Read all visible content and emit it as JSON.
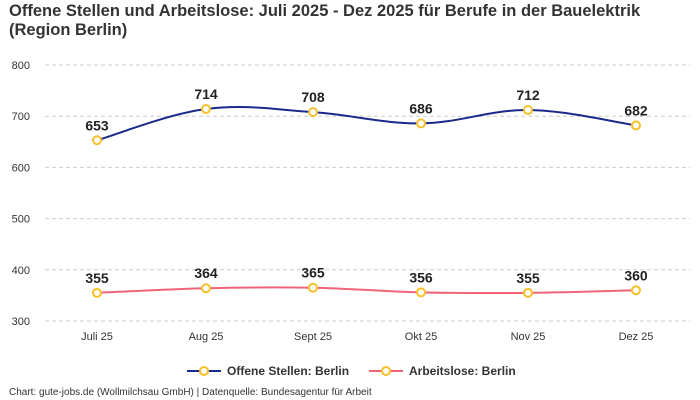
{
  "chart_data": {
    "type": "line",
    "title": "Offene Stellen und Arbeitslose: Juli 2025 - Dez 2025 für Berufe in der Bauelektrik (Region Berlin)",
    "categories": [
      "Juli 25",
      "Aug 25",
      "Sept 25",
      "Okt 25",
      "Nov 25",
      "Dez 25"
    ],
    "ylim": [
      300,
      800
    ],
    "yticks": [
      300,
      400,
      500,
      600,
      700,
      800
    ],
    "grid": true,
    "legend_position": "bottom",
    "series": [
      {
        "name": "Offene Stellen: Berlin",
        "values": [
          653,
          714,
          708,
          686,
          712,
          682
        ],
        "color": "#1a2a8c"
      },
      {
        "name": "Arbeitslose: Berlin",
        "values": [
          355,
          364,
          365,
          356,
          355,
          360
        ],
        "color": "#f0647a"
      }
    ],
    "marker_color": "#f5c02a"
  },
  "footer": "Chart: gute-jobs.de (Wollmilchsau GmbH) | Datenquelle: Bundesagentur für Arbeit"
}
